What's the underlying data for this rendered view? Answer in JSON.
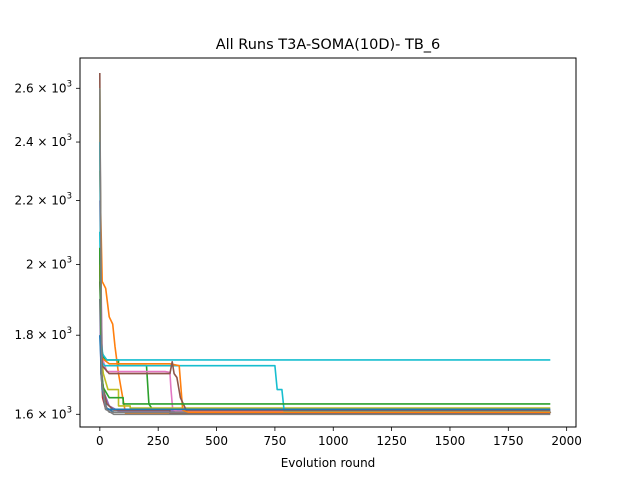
{
  "chart_data": {
    "type": "line",
    "title": "All Runs T3A-SOMA(10D)- TB_6",
    "xlabel": "Evolution round",
    "ylabel": "",
    "xlim": [
      -85,
      2040
    ],
    "ylim": [
      1570,
      2720
    ],
    "y_scale": "log",
    "grid": false,
    "legend": "none",
    "x_ticks": [
      0,
      250,
      500,
      750,
      1000,
      1250,
      1500,
      1750,
      2000
    ],
    "x_tick_labels": [
      "0",
      "250",
      "500",
      "750",
      "1000",
      "1250",
      "1500",
      "1750",
      "2000"
    ],
    "y_ticks": [
      1600,
      1800,
      2000,
      2200,
      2400,
      2600
    ],
    "y_tick_labels": [
      {
        "mantissa": "1.6 × 10",
        "exp": "3"
      },
      {
        "mantissa": "1.8 × 10",
        "exp": "3"
      },
      {
        "mantissa": "2 × 10",
        "exp": "3"
      },
      {
        "mantissa": "2.2 × 10",
        "exp": "3"
      },
      {
        "mantissa": "2.4 × 10",
        "exp": "3"
      },
      {
        "mantissa": "2.6 × 10",
        "exp": "3"
      }
    ],
    "series": [
      {
        "color": "#1f77b4",
        "points": [
          [
            0,
            2050
          ],
          [
            5,
            1700
          ],
          [
            15,
            1640
          ],
          [
            30,
            1615
          ],
          [
            60,
            1605
          ],
          [
            1930,
            1605
          ]
        ]
      },
      {
        "color": "#ff7f0e",
        "points": [
          [
            0,
            2300
          ],
          [
            10,
            1950
          ],
          [
            25,
            1930
          ],
          [
            40,
            1850
          ],
          [
            55,
            1830
          ],
          [
            65,
            1770
          ],
          [
            80,
            1700
          ],
          [
            95,
            1650
          ],
          [
            110,
            1603
          ],
          [
            1930,
            1603
          ]
        ]
      },
      {
        "color": "#2ca02c",
        "points": [
          [
            0,
            2000
          ],
          [
            8,
            1760
          ],
          [
            20,
            1735
          ],
          [
            80,
            1720
          ],
          [
            200,
            1720
          ],
          [
            210,
            1625
          ],
          [
            225,
            1612
          ],
          [
            240,
            1607
          ],
          [
            1930,
            1607
          ]
        ]
      },
      {
        "color": "#d62728",
        "points": [
          [
            0,
            2050
          ],
          [
            6,
            1720
          ],
          [
            12,
            1640
          ],
          [
            25,
            1612
          ],
          [
            1320,
            1612
          ],
          [
            1325,
            1605
          ],
          [
            1930,
            1605
          ]
        ]
      },
      {
        "color": "#9467bd",
        "points": [
          [
            0,
            1900
          ],
          [
            5,
            1700
          ],
          [
            20,
            1650
          ],
          [
            40,
            1620
          ],
          [
            80,
            1608
          ],
          [
            1930,
            1608
          ]
        ]
      },
      {
        "color": "#8c564b",
        "points": [
          [
            0,
            2660
          ],
          [
            6,
            1720
          ],
          [
            15,
            1660
          ],
          [
            30,
            1625
          ],
          [
            60,
            1610
          ],
          [
            300,
            1603
          ],
          [
            1930,
            1603
          ]
        ]
      },
      {
        "color": "#e377c2",
        "points": [
          [
            0,
            2200
          ],
          [
            10,
            1740
          ],
          [
            30,
            1705
          ],
          [
            280,
            1705
          ],
          [
            300,
            1703
          ],
          [
            305,
            1660
          ],
          [
            312,
            1612
          ],
          [
            330,
            1607
          ],
          [
            1930,
            1607
          ]
        ]
      },
      {
        "color": "#7f7f7f",
        "points": [
          [
            0,
            2500
          ],
          [
            8,
            1700
          ],
          [
            20,
            1625
          ],
          [
            40,
            1605
          ],
          [
            1930,
            1603
          ]
        ]
      },
      {
        "color": "#bcbd22",
        "points": [
          [
            0,
            2600
          ],
          [
            5,
            1760
          ],
          [
            15,
            1700
          ],
          [
            35,
            1660
          ],
          [
            80,
            1620
          ],
          [
            130,
            1615
          ],
          [
            1930,
            1615
          ]
        ]
      },
      {
        "color": "#17becf",
        "points": [
          [
            0,
            2400
          ],
          [
            5,
            1800
          ],
          [
            12,
            1750
          ],
          [
            30,
            1735
          ],
          [
            120,
            1735
          ],
          [
            1930,
            1735
          ]
        ]
      },
      {
        "color": "#17becf",
        "points": [
          [
            0,
            2100
          ],
          [
            8,
            1730
          ],
          [
            20,
            1720
          ],
          [
            750,
            1720
          ],
          [
            760,
            1660
          ],
          [
            780,
            1660
          ],
          [
            790,
            1607
          ],
          [
            1930,
            1607
          ]
        ]
      },
      {
        "color": "#ff7f0e",
        "points": [
          [
            0,
            2000
          ],
          [
            8,
            1740
          ],
          [
            40,
            1725
          ],
          [
            300,
            1725
          ],
          [
            340,
            1720
          ],
          [
            355,
            1610
          ],
          [
            380,
            1605
          ],
          [
            1930,
            1605
          ]
        ]
      },
      {
        "color": "#8c564b",
        "points": [
          [
            0,
            1950
          ],
          [
            10,
            1720
          ],
          [
            40,
            1700
          ],
          [
            300,
            1700
          ],
          [
            310,
            1730
          ],
          [
            318,
            1700
          ],
          [
            330,
            1690
          ],
          [
            345,
            1640
          ],
          [
            370,
            1610
          ],
          [
            1930,
            1610
          ]
        ]
      },
      {
        "color": "#2ca02c",
        "points": [
          [
            0,
            2050
          ],
          [
            6,
            1700
          ],
          [
            15,
            1665
          ],
          [
            40,
            1640
          ],
          [
            100,
            1625
          ],
          [
            1930,
            1625
          ]
        ]
      },
      {
        "color": "#1f77b4",
        "points": [
          [
            0,
            1800
          ],
          [
            10,
            1660
          ],
          [
            25,
            1612
          ],
          [
            1930,
            1612
          ]
        ]
      },
      {
        "color": "#7f7f7f",
        "points": [
          [
            0,
            2600
          ],
          [
            8,
            1680
          ],
          [
            25,
            1612
          ],
          [
            60,
            1600
          ],
          [
            1930,
            1600
          ]
        ]
      }
    ]
  }
}
